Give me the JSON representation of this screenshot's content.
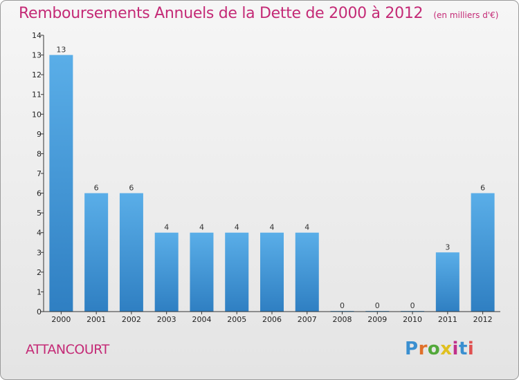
{
  "header": {
    "title": "Remboursements Annuels de la Dette de 2000 à 2012",
    "subtitle": "(en milliers d'€)"
  },
  "footer": {
    "commune": "ATTANCOURT",
    "logo_text": "Proxiti",
    "logo_colors": [
      "#3a8fd0",
      "#e0702a",
      "#52a83a",
      "#e0c020",
      "#c0308a",
      "#3a8fd0",
      "#e05050"
    ]
  },
  "chart_data": {
    "type": "bar",
    "title": "Remboursements Annuels de la Dette de 2000 à 2012",
    "subtitle": "(en milliers d'€)",
    "categories": [
      "2000",
      "2001",
      "2002",
      "2003",
      "2004",
      "2005",
      "2006",
      "2007",
      "2008",
      "2009",
      "2010",
      "2011",
      "2012"
    ],
    "values": [
      13,
      6,
      6,
      4,
      4,
      4,
      4,
      4,
      0,
      0,
      0,
      3,
      6
    ],
    "ylim": [
      0,
      14
    ],
    "yticks": [
      0,
      1,
      2,
      3,
      4,
      5,
      6,
      7,
      8,
      9,
      10,
      11,
      12,
      13,
      14
    ],
    "grid": false,
    "legend": false,
    "colors": {
      "bar": "#4a9fdf",
      "bar_dark": "#2f7fc2",
      "label": "#c42a76",
      "axis": "#333333"
    }
  }
}
